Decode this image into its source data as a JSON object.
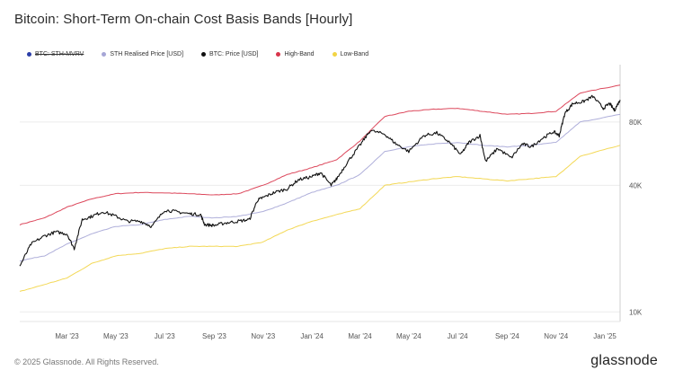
{
  "title": "Bitcoin: Short-Term On-chain Cost Basis Bands [Hourly]",
  "footer": "© 2025 Glassnode. All Rights Reserved.",
  "brand": "glassnode",
  "legend": [
    {
      "label": "BTC: STH-MVRV",
      "color": "#2b3ea8",
      "struck": true
    },
    {
      "label": "STH Realised Price [USD]",
      "color": "#a6a6d6",
      "struck": false
    },
    {
      "label": "BTC: Price [USD]",
      "color": "#111111",
      "struck": false
    },
    {
      "label": "High-Band",
      "color": "#d8344a",
      "struck": false
    },
    {
      "label": "Low-Band",
      "color": "#f2d444",
      "struck": false
    }
  ],
  "chart_data": {
    "type": "line",
    "y_scale": "log",
    "ylim": [
      9000,
      150000
    ],
    "y_ticks": [
      {
        "value": 10000,
        "label": "10K"
      },
      {
        "value": 40000,
        "label": "40K"
      },
      {
        "value": 80000,
        "label": "80K"
      }
    ],
    "xlim": [
      "2023-01-01",
      "2025-01-20"
    ],
    "x_ticks": [
      {
        "date": "2023-03-01",
        "label": "Mar '23"
      },
      {
        "date": "2023-05-01",
        "label": "May '23"
      },
      {
        "date": "2023-07-01",
        "label": "Jul '23"
      },
      {
        "date": "2023-09-01",
        "label": "Sep '23"
      },
      {
        "date": "2023-11-01",
        "label": "Nov '23"
      },
      {
        "date": "2024-01-01",
        "label": "Jan '24"
      },
      {
        "date": "2024-03-01",
        "label": "Mar '24"
      },
      {
        "date": "2024-05-01",
        "label": "May '24"
      },
      {
        "date": "2024-07-01",
        "label": "Jul '24"
      },
      {
        "date": "2024-09-01",
        "label": "Sep '24"
      },
      {
        "date": "2024-11-01",
        "label": "Nov '24"
      },
      {
        "date": "2025-01-01",
        "label": "Jan '25"
      }
    ],
    "grid": {
      "horizontal": true,
      "vertical": false
    },
    "legend_position": "top-left",
    "series": [
      {
        "name": "High-Band",
        "color": "#d8344a",
        "points": [
          [
            "2023-01-01",
            26000
          ],
          [
            "2023-02-01",
            28000
          ],
          [
            "2023-03-01",
            31500
          ],
          [
            "2023-04-01",
            34500
          ],
          [
            "2023-05-01",
            36500
          ],
          [
            "2023-06-01",
            37000
          ],
          [
            "2023-07-01",
            36800
          ],
          [
            "2023-08-01",
            36500
          ],
          [
            "2023-09-01",
            36000
          ],
          [
            "2023-10-01",
            36500
          ],
          [
            "2023-11-01",
            40000
          ],
          [
            "2023-12-01",
            45000
          ],
          [
            "2024-01-01",
            48500
          ],
          [
            "2024-02-01",
            53000
          ],
          [
            "2024-03-01",
            65000
          ],
          [
            "2024-04-01",
            85000
          ],
          [
            "2024-05-01",
            90000
          ],
          [
            "2024-06-01",
            92000
          ],
          [
            "2024-07-01",
            93000
          ],
          [
            "2024-08-01",
            90000
          ],
          [
            "2024-09-01",
            87000
          ],
          [
            "2024-10-01",
            88000
          ],
          [
            "2024-11-01",
            90000
          ],
          [
            "2024-12-01",
            110000
          ],
          [
            "2025-01-20",
            120000
          ]
        ]
      },
      {
        "name": "STH Realised Price [USD]",
        "color": "#a6a6d6",
        "points": [
          [
            "2023-01-01",
            17500
          ],
          [
            "2023-02-01",
            18500
          ],
          [
            "2023-03-01",
            21000
          ],
          [
            "2023-04-01",
            23500
          ],
          [
            "2023-05-01",
            25500
          ],
          [
            "2023-06-01",
            26000
          ],
          [
            "2023-07-01",
            27500
          ],
          [
            "2023-08-01",
            28500
          ],
          [
            "2023-09-01",
            28000
          ],
          [
            "2023-10-01",
            28500
          ],
          [
            "2023-11-01",
            30000
          ],
          [
            "2023-12-01",
            33000
          ],
          [
            "2024-01-01",
            37000
          ],
          [
            "2024-02-01",
            40000
          ],
          [
            "2024-03-01",
            45000
          ],
          [
            "2024-04-01",
            58000
          ],
          [
            "2024-05-01",
            61000
          ],
          [
            "2024-06-01",
            63000
          ],
          [
            "2024-07-01",
            64000
          ],
          [
            "2024-08-01",
            62000
          ],
          [
            "2024-09-01",
            61000
          ],
          [
            "2024-10-01",
            62000
          ],
          [
            "2024-11-01",
            64000
          ],
          [
            "2024-12-01",
            80000
          ],
          [
            "2025-01-20",
            87000
          ]
        ]
      },
      {
        "name": "Low-Band",
        "color": "#f2d444",
        "points": [
          [
            "2023-01-01",
            12500
          ],
          [
            "2023-02-01",
            13500
          ],
          [
            "2023-03-01",
            14500
          ],
          [
            "2023-04-01",
            17000
          ],
          [
            "2023-05-01",
            18500
          ],
          [
            "2023-06-01",
            19000
          ],
          [
            "2023-07-01",
            20000
          ],
          [
            "2023-08-01",
            20500
          ],
          [
            "2023-09-01",
            20500
          ],
          [
            "2023-10-01",
            20500
          ],
          [
            "2023-11-01",
            21500
          ],
          [
            "2023-12-01",
            24500
          ],
          [
            "2024-01-01",
            27000
          ],
          [
            "2024-02-01",
            29000
          ],
          [
            "2024-03-01",
            31000
          ],
          [
            "2024-04-01",
            40000
          ],
          [
            "2024-05-01",
            41500
          ],
          [
            "2024-06-01",
            43000
          ],
          [
            "2024-07-01",
            44000
          ],
          [
            "2024-08-01",
            43000
          ],
          [
            "2024-09-01",
            42000
          ],
          [
            "2024-10-01",
            43000
          ],
          [
            "2024-11-01",
            44000
          ],
          [
            "2024-12-01",
            55000
          ],
          [
            "2025-01-20",
            62000
          ]
        ]
      },
      {
        "name": "BTC: Price [USD]",
        "color": "#111111",
        "points": [
          [
            "2023-01-01",
            16500
          ],
          [
            "2023-01-15",
            21000
          ],
          [
            "2023-02-01",
            23000
          ],
          [
            "2023-02-15",
            24000
          ],
          [
            "2023-03-01",
            23500
          ],
          [
            "2023-03-10",
            20000
          ],
          [
            "2023-03-20",
            27500
          ],
          [
            "2023-04-01",
            28500
          ],
          [
            "2023-04-15",
            30000
          ],
          [
            "2023-05-01",
            28500
          ],
          [
            "2023-05-15",
            27000
          ],
          [
            "2023-06-01",
            27000
          ],
          [
            "2023-06-15",
            25500
          ],
          [
            "2023-07-01",
            30500
          ],
          [
            "2023-07-15",
            30000
          ],
          [
            "2023-08-01",
            29300
          ],
          [
            "2023-08-15",
            29000
          ],
          [
            "2023-08-20",
            26000
          ],
          [
            "2023-09-01",
            25800
          ],
          [
            "2023-09-15",
            26500
          ],
          [
            "2023-10-01",
            27000
          ],
          [
            "2023-10-15",
            27500
          ],
          [
            "2023-10-25",
            34000
          ],
          [
            "2023-11-01",
            35000
          ],
          [
            "2023-11-15",
            37000
          ],
          [
            "2023-12-01",
            38500
          ],
          [
            "2023-12-15",
            42500
          ],
          [
            "2024-01-01",
            44000
          ],
          [
            "2024-01-12",
            46000
          ],
          [
            "2024-01-25",
            40000
          ],
          [
            "2024-02-01",
            43000
          ],
          [
            "2024-02-15",
            52000
          ],
          [
            "2024-03-01",
            62000
          ],
          [
            "2024-03-14",
            73000
          ],
          [
            "2024-04-01",
            70000
          ],
          [
            "2024-04-15",
            63000
          ],
          [
            "2024-05-01",
            58000
          ],
          [
            "2024-05-20",
            69000
          ],
          [
            "2024-06-05",
            71000
          ],
          [
            "2024-06-20",
            64500
          ],
          [
            "2024-07-05",
            56000
          ],
          [
            "2024-07-15",
            64000
          ],
          [
            "2024-07-29",
            69000
          ],
          [
            "2024-08-05",
            52000
          ],
          [
            "2024-08-20",
            60000
          ],
          [
            "2024-09-06",
            54000
          ],
          [
            "2024-09-20",
            63000
          ],
          [
            "2024-10-01",
            61000
          ],
          [
            "2024-10-15",
            67000
          ],
          [
            "2024-10-29",
            72000
          ],
          [
            "2024-11-05",
            69000
          ],
          [
            "2024-11-12",
            88000
          ],
          [
            "2024-11-22",
            98000
          ],
          [
            "2024-12-05",
            100000
          ],
          [
            "2024-12-17",
            106000
          ],
          [
            "2024-12-30",
            93000
          ],
          [
            "2025-01-07",
            98000
          ],
          [
            "2025-01-13",
            91000
          ],
          [
            "2025-01-20",
            102000
          ]
        ]
      }
    ]
  }
}
